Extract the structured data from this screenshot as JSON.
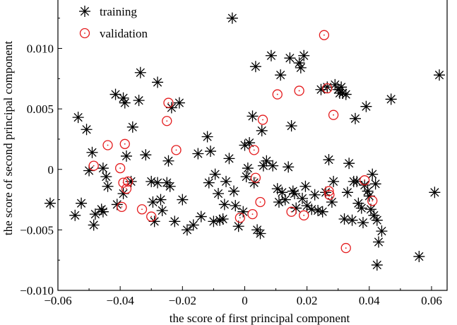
{
  "chart_data": {
    "type": "scatter",
    "xlabel": "the score of first principal component",
    "ylabel": "the score of second principal component",
    "xlim": [
      -0.06,
      0.065
    ],
    "ylim": [
      -0.01,
      0.014
    ],
    "x_ticks": [
      -0.06,
      -0.04,
      -0.02,
      0,
      0.02,
      0.04,
      0.06
    ],
    "x_tick_labels": [
      "−0.06",
      "−0.04",
      "−0.02",
      "0",
      "0.02",
      "0.04",
      "0.06"
    ],
    "y_ticks": [
      -0.01,
      -0.005,
      0,
      0.005,
      0.01
    ],
    "y_tick_labels": [
      "−0.010",
      "−0.005",
      "0",
      "0.005",
      "0.010"
    ],
    "grid": false,
    "legend_position": "top-left",
    "series": [
      {
        "name": "training",
        "marker": "asterisk",
        "color": "#000000",
        "points": [
          [
            -0.0625,
            -0.0028
          ],
          [
            -0.0545,
            -0.0038
          ],
          [
            -0.0535,
            0.0043
          ],
          [
            -0.0525,
            -0.0028
          ],
          [
            -0.0508,
            0.0033
          ],
          [
            -0.05,
            -0.0001
          ],
          [
            -0.049,
            0.0014
          ],
          [
            -0.0485,
            -0.0046
          ],
          [
            -0.048,
            -0.0037
          ],
          [
            -0.046,
            -0.0033
          ],
          [
            -0.0455,
            0.0001
          ],
          [
            -0.0455,
            -0.0035
          ],
          [
            -0.0445,
            -0.0006
          ],
          [
            -0.044,
            -0.0014
          ],
          [
            -0.0415,
            0.0062
          ],
          [
            -0.041,
            -0.0029
          ],
          [
            -0.039,
            0.0059
          ],
          [
            -0.039,
            -0.002
          ],
          [
            -0.0385,
            0.0055
          ],
          [
            -0.038,
            0.0011
          ],
          [
            -0.0365,
            -0.001
          ],
          [
            -0.036,
            0.0035
          ],
          [
            -0.034,
            0.0057
          ],
          [
            -0.0335,
            0.008
          ],
          [
            -0.0318,
            0.0012
          ],
          [
            -0.03,
            -0.001
          ],
          [
            -0.0295,
            -0.0027
          ],
          [
            -0.029,
            -0.0043
          ],
          [
            -0.028,
            0.0072
          ],
          [
            -0.028,
            -0.0011
          ],
          [
            -0.027,
            -0.0025
          ],
          [
            -0.0265,
            -0.0034
          ],
          [
            -0.025,
            -0.0011
          ],
          [
            -0.0245,
            0.0007
          ],
          [
            -0.024,
            -0.0014
          ],
          [
            -0.0235,
            0.0051
          ],
          [
            -0.0225,
            -0.0043
          ],
          [
            -0.021,
            0.0055
          ],
          [
            -0.02,
            -0.0025
          ],
          [
            -0.0185,
            -0.005
          ],
          [
            -0.0165,
            -0.0046
          ],
          [
            -0.015,
            0.0013
          ],
          [
            -0.014,
            -0.0039
          ],
          [
            -0.012,
            0.0027
          ],
          [
            -0.0115,
            -0.0011
          ],
          [
            -0.011,
            0.0015
          ],
          [
            -0.01,
            -0.0043
          ],
          [
            -0.0095,
            -0.0004
          ],
          [
            -0.0085,
            -0.002
          ],
          [
            -0.008,
            -0.0042
          ],
          [
            -0.007,
            -0.0041
          ],
          [
            -0.0065,
            -0.0029
          ],
          [
            -0.006,
            -0.001
          ],
          [
            -0.005,
            0.0009
          ],
          [
            -0.004,
            0.0125
          ],
          [
            -0.0035,
            -0.0018
          ],
          [
            -0.003,
            -0.003
          ],
          [
            -0.002,
            -0.0047
          ],
          [
            -0.0005,
            -0.0035
          ],
          [
            0.0,
            0.002
          ],
          [
            0.0005,
            -0.0006
          ],
          [
            0.001,
            0.0001
          ],
          [
            0.0015,
            0.0022
          ],
          [
            0.0025,
            0.0044
          ],
          [
            0.003,
            -0.0011
          ],
          [
            0.0035,
            0.0085
          ],
          [
            0.004,
            -0.005
          ],
          [
            0.005,
            -0.0053
          ],
          [
            0.0055,
            0.0032
          ],
          [
            0.006,
            0.0003
          ],
          [
            0.007,
            0.0007
          ],
          [
            0.0085,
            0.0094
          ],
          [
            0.009,
            0.0003
          ],
          [
            0.0105,
            -0.0016
          ],
          [
            0.011,
            -0.0027
          ],
          [
            0.0115,
            0.0078
          ],
          [
            0.012,
            -0.0019
          ],
          [
            0.013,
            -0.0025
          ],
          [
            0.014,
            0.0002
          ],
          [
            0.0145,
            0.0092
          ],
          [
            0.015,
            0.0036
          ],
          [
            0.0155,
            -0.0018
          ],
          [
            0.016,
            -0.002
          ],
          [
            0.0165,
            -0.0032
          ],
          [
            0.0175,
            0.0088
          ],
          [
            0.018,
            0.0084
          ],
          [
            0.0185,
            -0.0024
          ],
          [
            0.019,
            0.0094
          ],
          [
            0.0195,
            -0.0014
          ],
          [
            0.02,
            -0.003
          ],
          [
            0.0215,
            -0.0033
          ],
          [
            0.0225,
            -0.0021
          ],
          [
            0.0235,
            -0.0034
          ],
          [
            0.0245,
            0.0066
          ],
          [
            0.025,
            -0.0035
          ],
          [
            0.026,
            -0.0019
          ],
          [
            0.0265,
            0.0068
          ],
          [
            0.027,
            0.0008
          ],
          [
            0.028,
            -0.0027
          ],
          [
            0.0285,
            -0.001
          ],
          [
            0.029,
            0.007
          ],
          [
            0.03,
            0.0066
          ],
          [
            0.0305,
            0.0063
          ],
          [
            0.031,
            0.0068
          ],
          [
            0.0315,
            0.0063
          ],
          [
            0.032,
            -0.0041
          ],
          [
            0.0325,
            0.0062
          ],
          [
            0.033,
            -0.0019
          ],
          [
            0.0335,
            0.0005
          ],
          [
            0.0345,
            -0.0042
          ],
          [
            0.035,
            -0.001
          ],
          [
            0.0355,
            0.0042
          ],
          [
            0.036,
            -0.001
          ],
          [
            0.0365,
            -0.0028
          ],
          [
            0.0375,
            -0.0032
          ],
          [
            0.038,
            -0.0044
          ],
          [
            0.0385,
            -0.0013
          ],
          [
            0.039,
            0.0052
          ],
          [
            0.0395,
            -0.0018
          ],
          [
            0.04,
            -0.0022
          ],
          [
            0.0405,
            -0.0033
          ],
          [
            0.041,
            -0.0004
          ],
          [
            0.0415,
            -0.0038
          ],
          [
            0.042,
            -0.0012
          ],
          [
            0.0425,
            -0.0042
          ],
          [
            0.043,
            -0.006
          ],
          [
            0.044,
            -0.0051
          ],
          [
            0.047,
            0.0058
          ],
          [
            0.056,
            -0.0072
          ],
          [
            0.061,
            -0.0019
          ],
          [
            0.0625,
            0.0078
          ],
          [
            0.0425,
            -0.0079
          ]
        ]
      },
      {
        "name": "validation",
        "marker": "circle",
        "color": "#e41a1c",
        "points": [
          [
            -0.0485,
            0.0003
          ],
          [
            -0.044,
            0.002
          ],
          [
            -0.04,
            0.0001
          ],
          [
            -0.0395,
            -0.0031
          ],
          [
            -0.039,
            -0.0011
          ],
          [
            -0.0385,
            0.0021
          ],
          [
            -0.038,
            -0.0016
          ],
          [
            -0.0375,
            -0.001
          ],
          [
            -0.033,
            -0.0033
          ],
          [
            -0.03,
            -0.0039
          ],
          [
            -0.025,
            0.004
          ],
          [
            -0.0245,
            0.0055
          ],
          [
            -0.022,
            0.0016
          ],
          [
            -0.0015,
            -0.004
          ],
          [
            0.0025,
            -0.0037
          ],
          [
            0.003,
            0.0016
          ],
          [
            0.0035,
            -0.0007
          ],
          [
            0.005,
            -0.0027
          ],
          [
            0.0058,
            0.0041
          ],
          [
            0.0105,
            0.0062
          ],
          [
            0.015,
            -0.0035
          ],
          [
            0.0175,
            0.0065
          ],
          [
            0.019,
            -0.0038
          ],
          [
            0.0255,
            0.0111
          ],
          [
            0.0265,
            0.0067
          ],
          [
            0.027,
            -0.0018
          ],
          [
            0.0272,
            -0.0021
          ],
          [
            0.0285,
            0.0045
          ],
          [
            0.0325,
            -0.0065
          ],
          [
            0.0385,
            -0.0009
          ],
          [
            0.041,
            -0.0026
          ]
        ]
      }
    ]
  }
}
